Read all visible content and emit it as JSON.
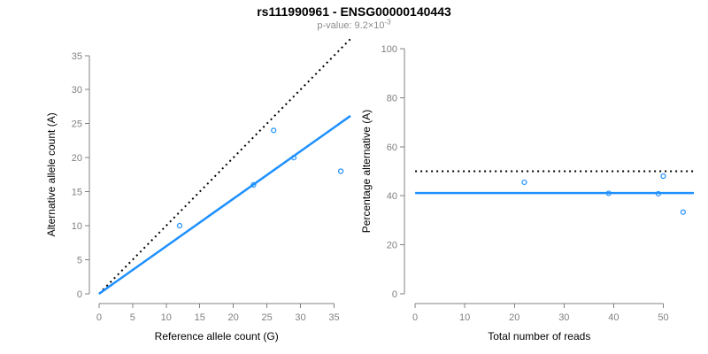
{
  "header": {
    "title": "rs111990961 - ENSG00000140443",
    "pvalue_base": "p-value: 9.2×10",
    "pvalue_exponent": "-3"
  },
  "colors": {
    "point_blue": "#1E90FF",
    "fit_blue": "#1E90FF",
    "reference_black": "#000000",
    "axis_gray": "#808080",
    "tick_label_gray": "#808080",
    "axis_title_black": "#000000",
    "subtitle_gray": "#8c8c8c",
    "background": "#FFFFFF"
  },
  "chart_data": [
    {
      "type": "scatter",
      "panel": "left",
      "title": "",
      "xlabel": "Reference allele count (G)",
      "ylabel": "Alternative allele count (A)",
      "xlim": [
        0,
        36
      ],
      "ylim": [
        0,
        36
      ],
      "xticks": [
        0,
        5,
        10,
        15,
        20,
        25,
        30,
        35
      ],
      "yticks": [
        0,
        5,
        10,
        15,
        20,
        25,
        30,
        35
      ],
      "grid": false,
      "legend": "none",
      "point_color": "#1E90FF",
      "points": [
        [
          12,
          10
        ],
        [
          23,
          16
        ],
        [
          26,
          24
        ],
        [
          29,
          20
        ],
        [
          36,
          18
        ]
      ],
      "lines": [
        {
          "name": "identity-line",
          "slope": 1,
          "intercept": 0,
          "style": "dotted",
          "color": "#000000"
        },
        {
          "name": "fit-line",
          "slope": 0.698,
          "intercept": 0,
          "style": "solid",
          "color": "#1E90FF"
        }
      ]
    },
    {
      "type": "scatter",
      "panel": "right",
      "title": "",
      "xlabel": "Total number of reads",
      "ylabel": "Percentage alternative (A)",
      "xlim": [
        0,
        54
      ],
      "ylim": [
        0,
        100
      ],
      "xticks": [
        0,
        10,
        20,
        30,
        40,
        50
      ],
      "yticks": [
        0,
        20,
        40,
        60,
        80,
        100
      ],
      "grid": false,
      "legend": "none",
      "point_color": "#1E90FF",
      "points": [
        [
          22,
          45.5
        ],
        [
          39,
          41
        ],
        [
          49,
          40.8
        ],
        [
          50,
          48
        ],
        [
          54,
          33.3
        ]
      ],
      "lines": [
        {
          "name": "expected-50pct-line",
          "slope": 0,
          "intercept": 50,
          "style": "dotted",
          "color": "#000000"
        },
        {
          "name": "mean-alt-fraction-line",
          "slope": 0,
          "intercept": 41.1,
          "style": "solid",
          "color": "#1E90FF"
        }
      ]
    }
  ]
}
